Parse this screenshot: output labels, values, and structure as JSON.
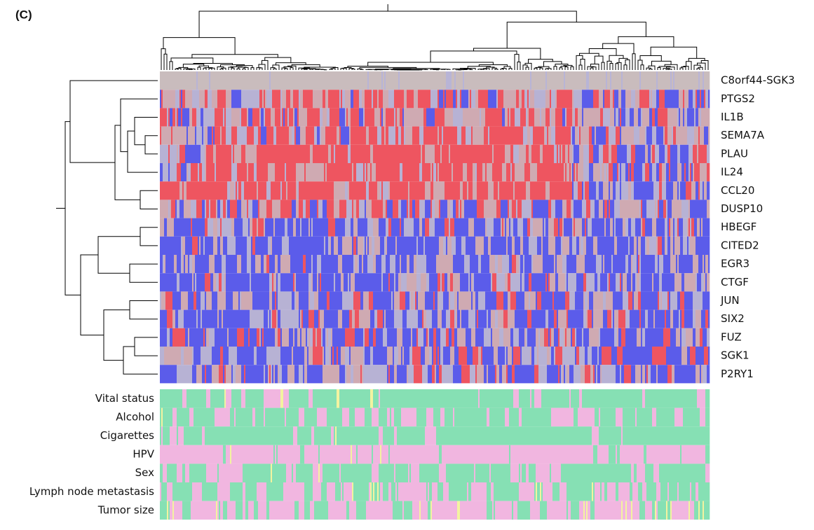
{
  "panel_label": "(C)",
  "genes": [
    "C8orf44-SGK3",
    "PTGS2",
    "IL1B",
    "SEMA7A",
    "PLAU",
    "IL24",
    "CCL20",
    "DUSP10",
    "HBEGF",
    "CITED2",
    "EGR3",
    "CTGF",
    "JUN",
    "SIX2",
    "FUZ",
    "SGK1",
    "P2RY1"
  ],
  "clinical_variables": [
    "Vital status",
    "Alcohol",
    "Cigarettes",
    "HPV",
    "Sex",
    "Lymph node metastasis",
    "Tumor size"
  ]
}
